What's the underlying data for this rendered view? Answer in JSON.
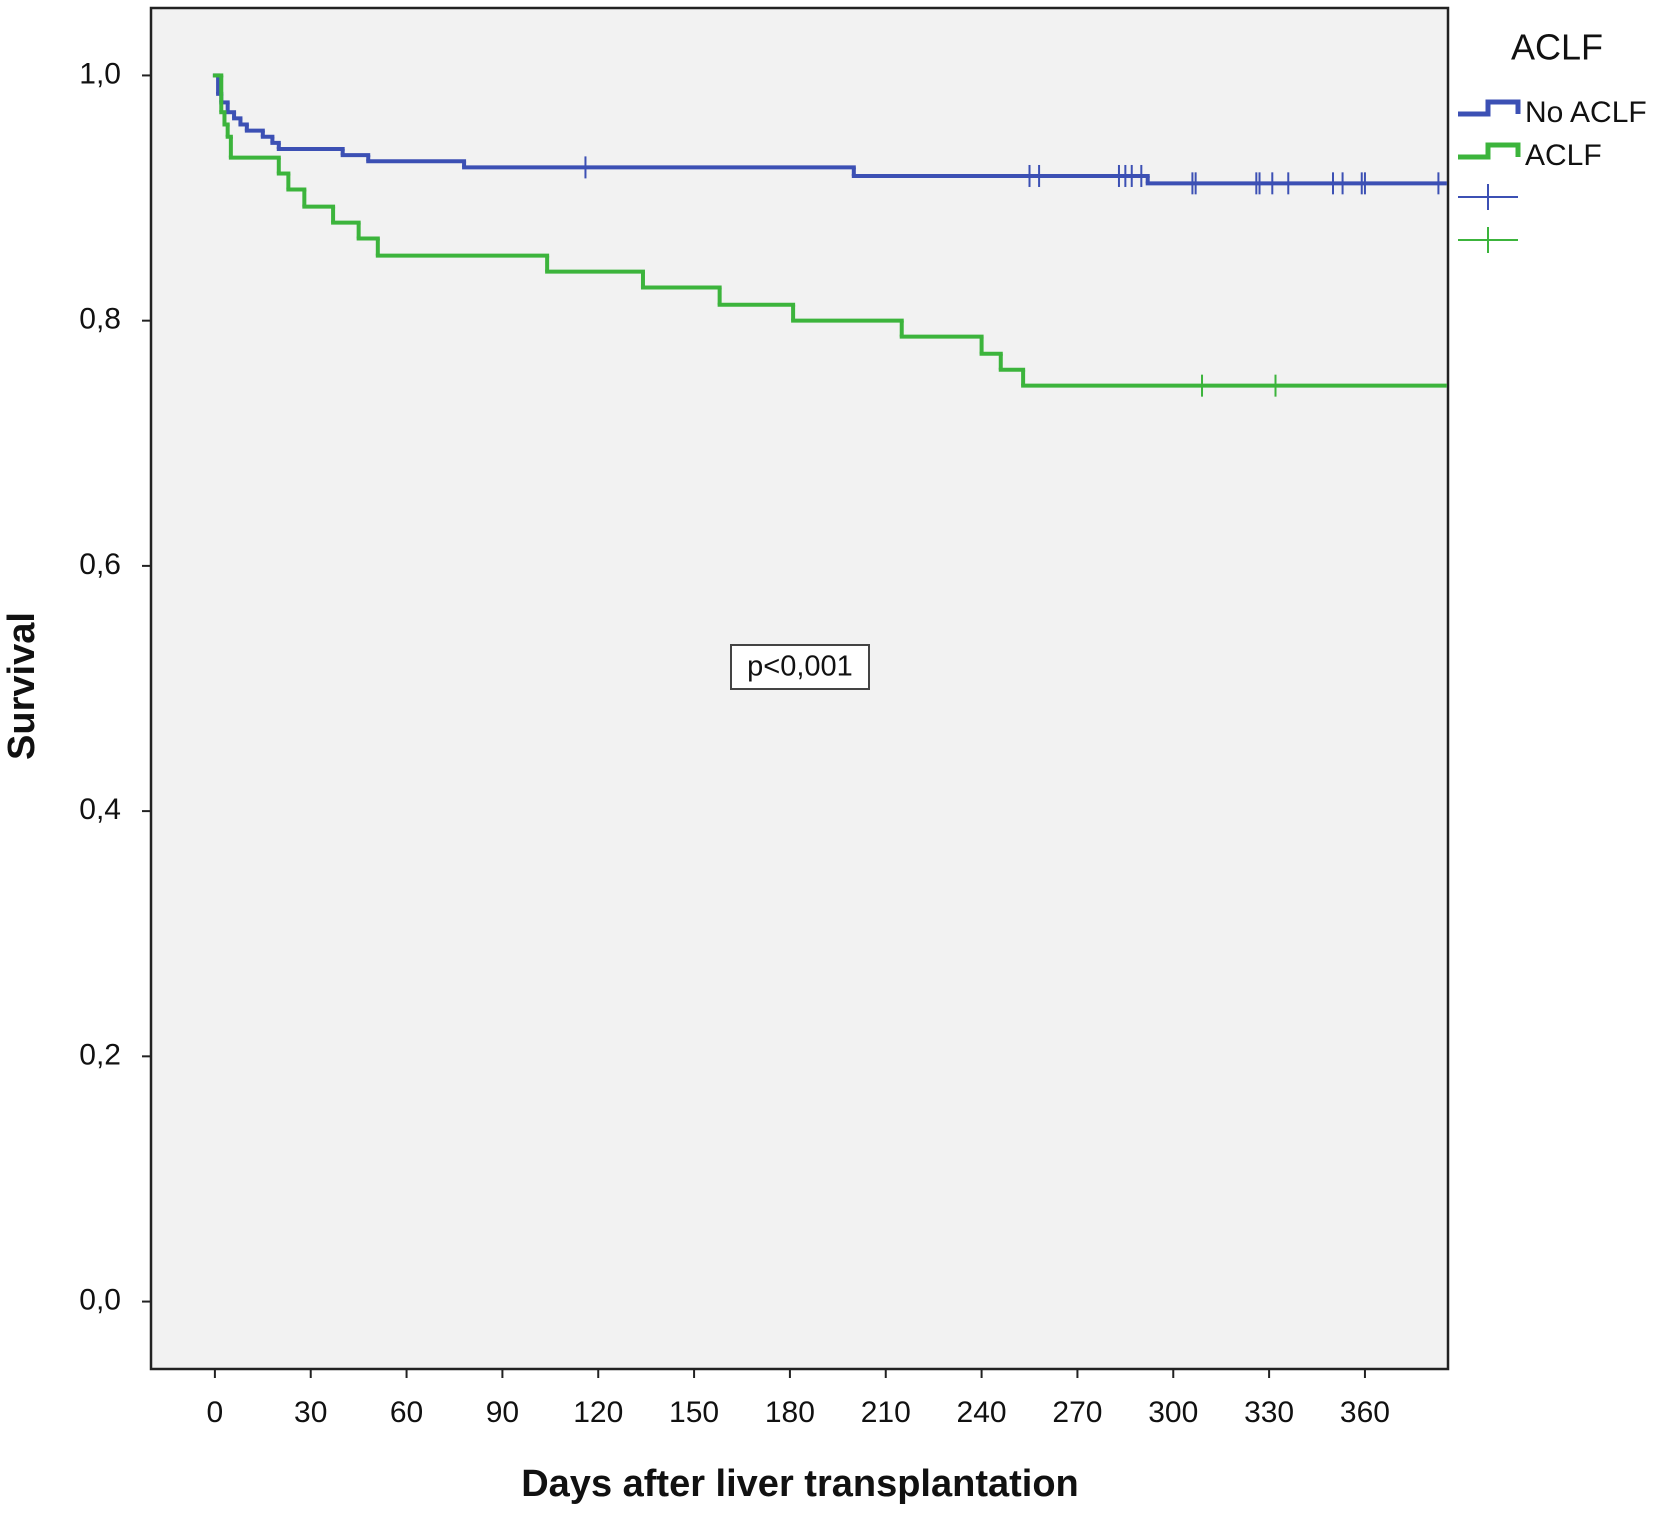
{
  "chart_data": {
    "type": "survival",
    "x_label": "Days after liver transplantation",
    "y_label": "Survival",
    "legend_title": "ACLF",
    "annotation": "p<0,001",
    "xlim": [
      -20,
      386
    ],
    "ylim": [
      -0.055,
      1.055
    ],
    "xticks": [
      0,
      30,
      60,
      90,
      120,
      150,
      180,
      210,
      240,
      270,
      300,
      330,
      360
    ],
    "yticks": [
      {
        "value": 0,
        "label": "0,0"
      },
      {
        "value": 0.2,
        "label": "0,2"
      },
      {
        "value": 0.4,
        "label": "0,4"
      },
      {
        "value": 0.6,
        "label": "0,6"
      },
      {
        "value": 0.8,
        "label": "0,8"
      },
      {
        "value": 1.0,
        "label": "1,0"
      }
    ],
    "series": [
      {
        "name": "No ACLF",
        "color": "#3c50b4",
        "x": [
          0,
          1,
          2,
          4,
          6,
          8,
          10,
          15,
          18,
          20,
          40,
          48,
          78,
          200,
          292,
          385
        ],
        "values": [
          1.0,
          0.985,
          0.978,
          0.97,
          0.965,
          0.96,
          0.955,
          0.95,
          0.945,
          0.94,
          0.935,
          0.93,
          0.925,
          0.918,
          0.912,
          0.912
        ],
        "censored_x": [
          116,
          255,
          258,
          283,
          285,
          287,
          290,
          306,
          307,
          326,
          327,
          331,
          336,
          350,
          353,
          359,
          360,
          383
        ],
        "censored_values": [
          0.925,
          0.918,
          0.918,
          0.918,
          0.918,
          0.918,
          0.918,
          0.912,
          0.912,
          0.912,
          0.912,
          0.912,
          0.912,
          0.912,
          0.912,
          0.912,
          0.912,
          0.912
        ]
      },
      {
        "name": "ACLF",
        "color": "#3cb43c",
        "x": [
          0,
          2,
          3,
          4,
          5,
          20,
          23,
          28,
          37,
          45,
          51,
          104,
          134,
          158,
          181,
          215,
          240,
          246,
          253,
          385
        ],
        "values": [
          1.0,
          0.97,
          0.96,
          0.95,
          0.933,
          0.92,
          0.907,
          0.893,
          0.88,
          0.867,
          0.853,
          0.84,
          0.827,
          0.813,
          0.8,
          0.787,
          0.773,
          0.76,
          0.747,
          0.747
        ],
        "censored_x": [
          309,
          332
        ],
        "censored_values": [
          0.747,
          0.747
        ]
      }
    ]
  }
}
